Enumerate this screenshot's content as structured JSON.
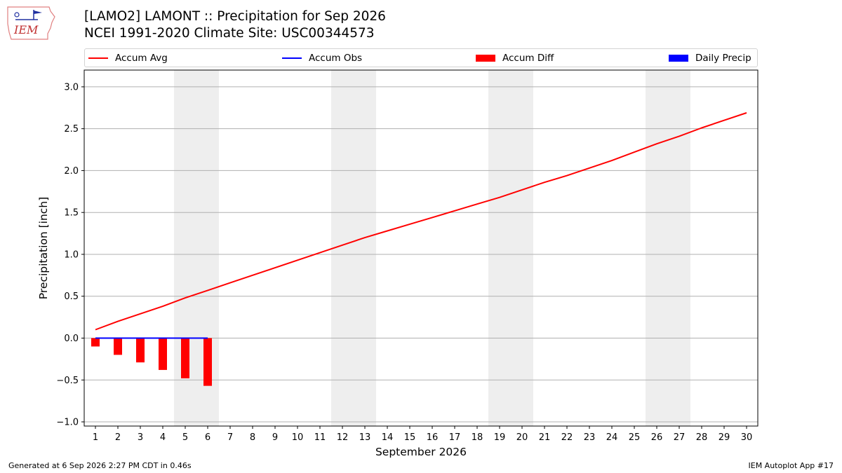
{
  "header": {
    "logo_text": "IEM",
    "title_line1": "[LAMO2] LAMONT :: Precipitation for Sep 2026",
    "title_line2": "NCEI 1991-2020 Climate Site: USC00344573"
  },
  "legend": {
    "accum_avg": "Accum Avg",
    "accum_obs": "Accum Obs",
    "accum_diff": "Accum Diff",
    "daily_precip": "Daily Precip"
  },
  "colors": {
    "accum_avg": "#ff0000",
    "accum_obs": "#0000ff",
    "accum_diff": "#ff0000",
    "daily_precip": "#0000ff",
    "weekend_shade": "#eeeeee",
    "grid": "#b0b0b0"
  },
  "chart_data": {
    "type": "line",
    "xlabel": "September 2026",
    "ylabel": "Precipitation [inch]",
    "ylim": [
      -1.05,
      3.2
    ],
    "yticks": [
      "3.0",
      "2.5",
      "2.0",
      "1.5",
      "1.0",
      "0.5",
      "0.0",
      "−0.5",
      "−1.0"
    ],
    "ytick_values": [
      3.0,
      2.5,
      2.0,
      1.5,
      1.0,
      0.5,
      0.0,
      -0.5,
      -1.0
    ],
    "x": [
      1,
      2,
      3,
      4,
      5,
      6,
      7,
      8,
      9,
      10,
      11,
      12,
      13,
      14,
      15,
      16,
      17,
      18,
      19,
      20,
      21,
      22,
      23,
      24,
      25,
      26,
      27,
      28,
      29,
      30
    ],
    "weekend_days": [
      5,
      6,
      12,
      13,
      19,
      20,
      26,
      27
    ],
    "grid": "horizontal",
    "series": [
      {
        "name": "Accum Avg",
        "kind": "line",
        "x": [
          1,
          2,
          3,
          4,
          5,
          6,
          7,
          8,
          9,
          10,
          11,
          12,
          13,
          14,
          15,
          16,
          17,
          18,
          19,
          20,
          21,
          22,
          23,
          24,
          25,
          26,
          27,
          28,
          29,
          30
        ],
        "values": [
          0.1,
          0.2,
          0.29,
          0.38,
          0.48,
          0.57,
          0.66,
          0.75,
          0.84,
          0.93,
          1.02,
          1.11,
          1.2,
          1.28,
          1.36,
          1.44,
          1.52,
          1.6,
          1.68,
          1.77,
          1.86,
          1.94,
          2.03,
          2.12,
          2.22,
          2.32,
          2.41,
          2.51,
          2.6,
          2.69
        ]
      },
      {
        "name": "Accum Obs",
        "kind": "line",
        "x": [
          1,
          2,
          3,
          4,
          5,
          6
        ],
        "values": [
          0.0,
          0.0,
          0.0,
          0.0,
          0.0,
          0.0
        ]
      },
      {
        "name": "Accum Diff",
        "kind": "bar",
        "x": [
          1,
          2,
          3,
          4,
          5,
          6
        ],
        "values": [
          -0.1,
          -0.2,
          -0.29,
          -0.38,
          -0.48,
          -0.57
        ]
      },
      {
        "name": "Daily Precip",
        "kind": "bar",
        "x": [],
        "values": []
      }
    ]
  },
  "footer": {
    "left": "Generated at 6 Sep 2026 2:27 PM CDT in 0.46s",
    "right": "IEM Autoplot App #17"
  }
}
